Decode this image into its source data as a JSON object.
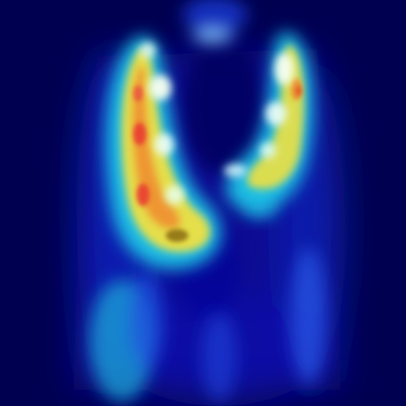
{
  "image": {
    "kind": "heatmap-overlay",
    "colormap": "jet",
    "colors": {
      "background": "#000050",
      "deep_blue": "#0a0aa8",
      "blue": "#2040e0",
      "cyan": "#20c8e8",
      "light_cyan": "#a0f0f0",
      "white": "#f8fff0",
      "yellow": "#f0e040",
      "orange": "#f08a30",
      "red": "#e83030",
      "dark_olive": "#8a6a10"
    }
  }
}
